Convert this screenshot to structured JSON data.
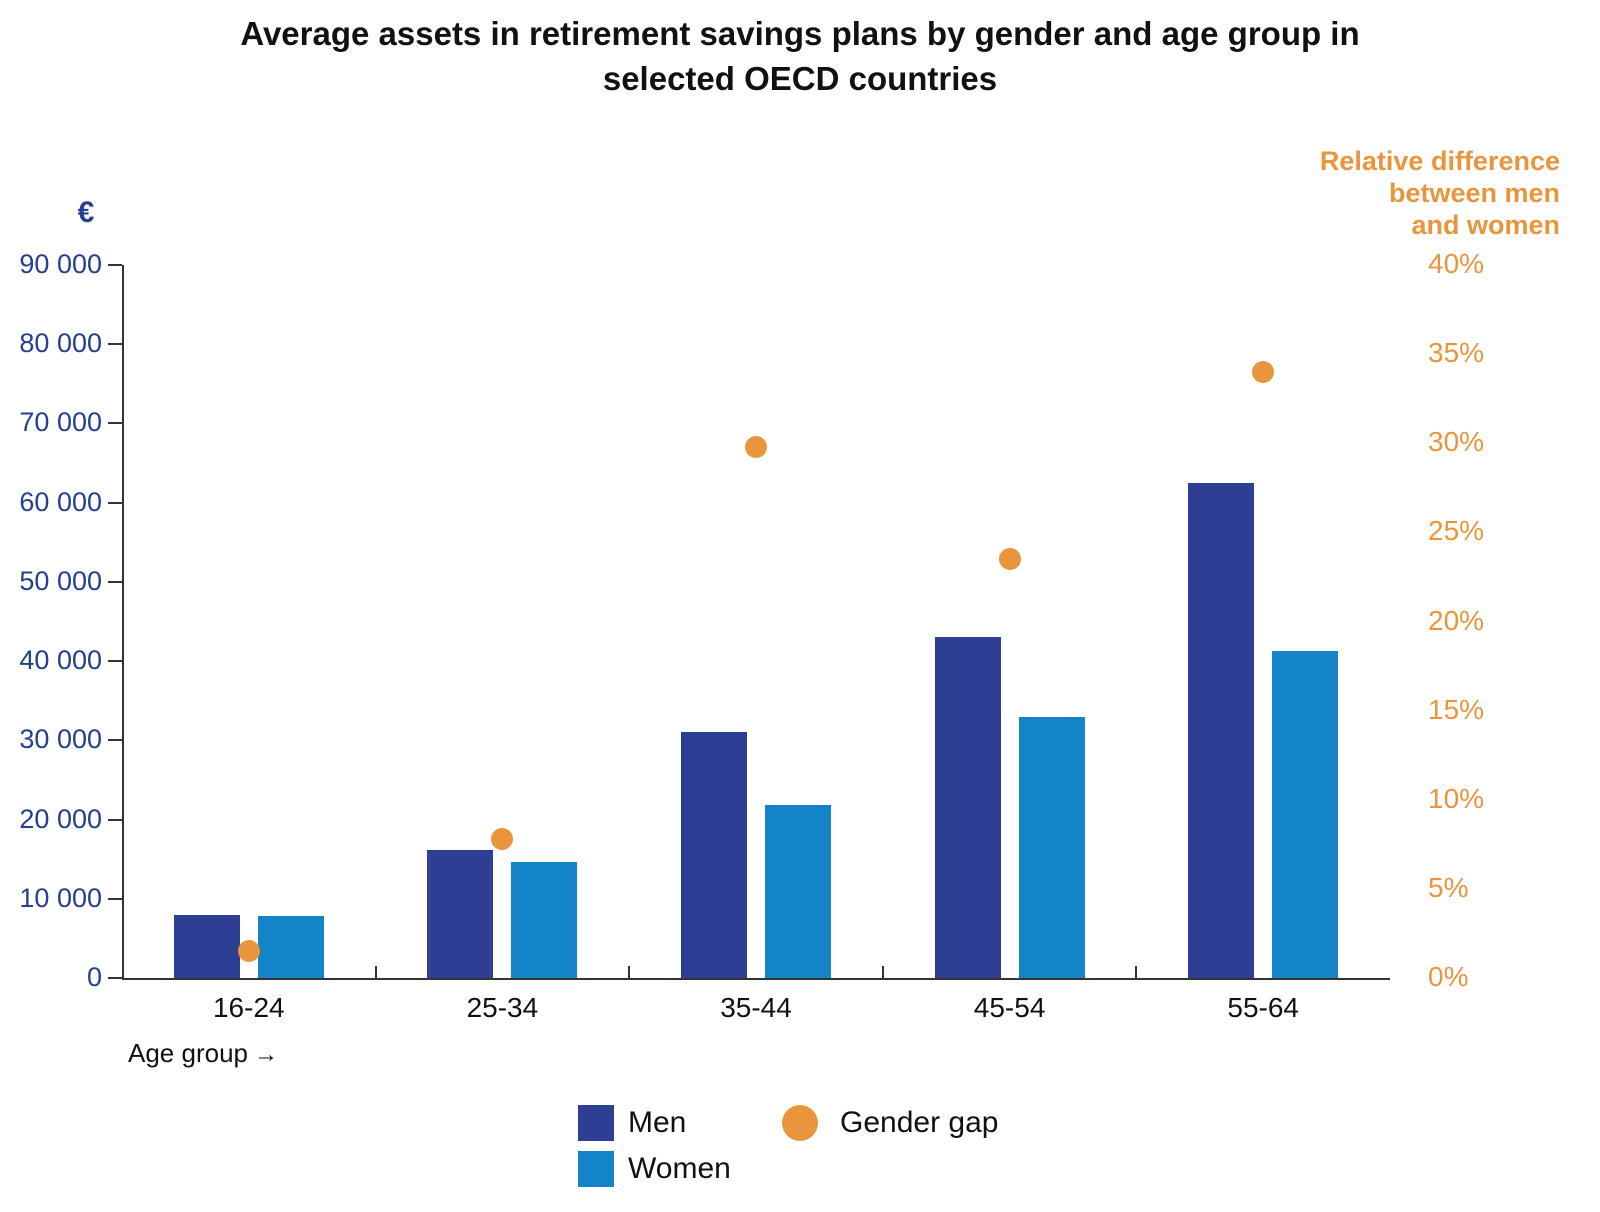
{
  "title": "Average assets in retirement savings plans by gender and age group in selected OECD countries",
  "chart_data": {
    "type": "bar",
    "categories": [
      "16-24",
      "25-34",
      "35-44",
      "45-54",
      "55-64"
    ],
    "series": [
      {
        "name": "Men",
        "type": "bar",
        "axis": "left",
        "color": "#2d3e94",
        "values": [
          8000,
          16200,
          31000,
          43000,
          62500
        ]
      },
      {
        "name": "Women",
        "type": "bar",
        "axis": "left",
        "color": "#1384c8",
        "values": [
          7800,
          14600,
          21800,
          33000,
          41300
        ]
      },
      {
        "name": "Gender gap",
        "type": "scatter",
        "axis": "right",
        "color": "#e9953c",
        "values": [
          1.5,
          7.8,
          29.8,
          23.5,
          34.0
        ]
      }
    ],
    "left_axis": {
      "label": "€",
      "min": 0,
      "max": 90000,
      "step": 10000
    },
    "right_axis": {
      "label": "Relative difference between men and women",
      "label_lines": [
        "Relative difference",
        "between men",
        "and women"
      ],
      "min": 0,
      "max": 40,
      "step": 5,
      "suffix": "%"
    },
    "x_axis": {
      "label": "Age group",
      "arrow": "→"
    },
    "grid": "off",
    "legend_position": "bottom"
  }
}
